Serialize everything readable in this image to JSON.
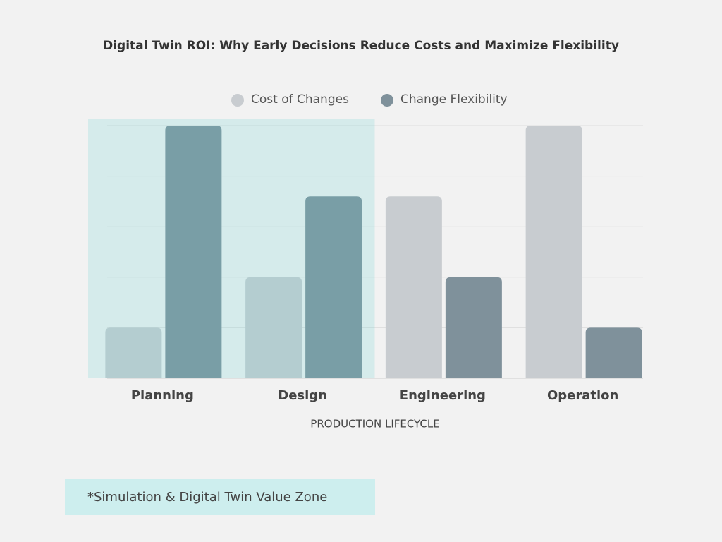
{
  "chart_data": {
    "type": "bar",
    "title": "Digital Twin ROI: Why Early Decisions Reduce Costs and Maximize Flexibility",
    "x_label": "PRODUCTION LIFECYCLE",
    "categories": [
      "Planning",
      "Design",
      "Engineering",
      "Operation"
    ],
    "series": [
      {
        "name": "Cost of Changes",
        "color": "#c8ccd0",
        "values": [
          1,
          2,
          3.6,
          5
        ]
      },
      {
        "name": "Change Flexibility",
        "color": "#7f919b",
        "values": [
          5,
          3.6,
          2,
          1
        ]
      }
    ],
    "ylim": [
      0,
      5
    ],
    "yticks": [
      0,
      1,
      2,
      3,
      4,
      5
    ],
    "grid": true,
    "highlight_categories": [
      "Planning",
      "Design"
    ],
    "highlight_color": "rgba(100,210,210,0.2)",
    "highlight_label": "*Simulation & Digital Twin Value Zone",
    "highlight_label_color": "#cdeeee"
  }
}
